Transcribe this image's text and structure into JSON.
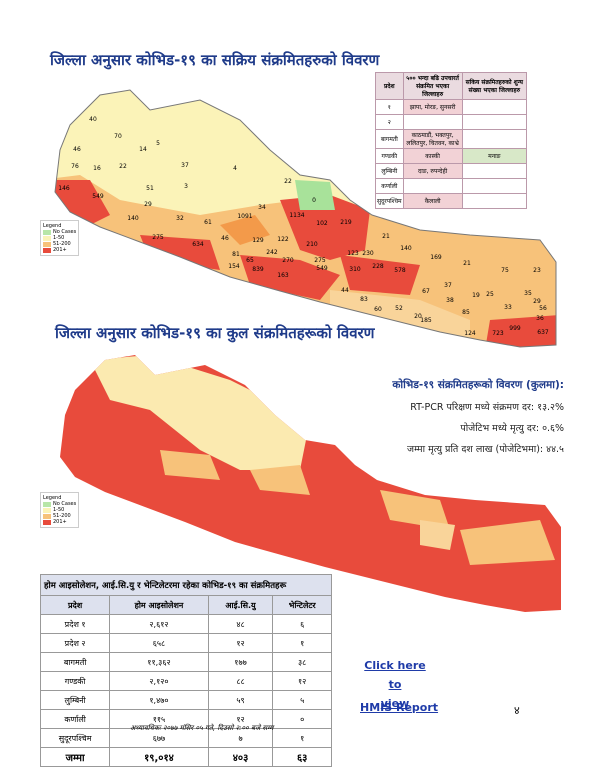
{
  "active_map": {
    "title": "जिल्ला अनुसार कोभिड-१९ का सक्रिय संक्रमितहरुको विवरण",
    "legend": {
      "title": "Legend",
      "items": [
        "No Cases",
        "1-50",
        "51-200",
        "201+"
      ]
    },
    "labels": [
      "40",
      "70",
      "46",
      "76",
      "16",
      "22",
      "146",
      "549",
      "14",
      "5",
      "37",
      "4",
      "51",
      "3",
      "29",
      "140",
      "32",
      "61",
      "1091",
      "34",
      "22",
      "0",
      "275",
      "634",
      "46",
      "129",
      "122",
      "1134",
      "102",
      "219",
      "242",
      "270",
      "210",
      "81",
      "65",
      "154",
      "839",
      "163",
      "275",
      "549",
      "123",
      "230",
      "21",
      "310",
      "228",
      "578",
      "140",
      "169",
      "21",
      "75",
      "23",
      "44",
      "83",
      "60",
      "52",
      "67",
      "20",
      "185",
      "37",
      "38",
      "85",
      "19",
      "25",
      "35",
      "29",
      "33",
      "56",
      "124",
      "723",
      "999",
      "637",
      "36"
    ]
  },
  "province_table": {
    "headers": [
      "प्रदेश",
      "५०० भन्दा बढि उपचारर्त संक्रमित भएका जिल्लाहरु",
      "सकिय संक्रमितहरुको शुन्य संख्या भएका जिल्लाहरु"
    ],
    "rows": [
      [
        "१",
        "झापा, मोरङ, सुनसरी",
        null
      ],
      [
        "२",
        null,
        null
      ],
      [
        "बागमती",
        "काठमाडौं, भक्तपुर, ललितपुर, चितवन, काभ्रे",
        null
      ],
      [
        "गण्डकी",
        "कास्की",
        "मनाङ"
      ],
      [
        "लुम्बिनी",
        "दाङ, रुपन्देही",
        null
      ],
      [
        "कर्णाली",
        null,
        null
      ],
      [
        "सुदूरपश्चिम",
        "कैलाली",
        null
      ]
    ]
  },
  "total_map": {
    "title": "जिल्ला अनुसार कोभिड-१९ का कुल संक्रमितहरूको विवरण",
    "legend": {
      "title": "Legend",
      "items": [
        "No Cases",
        "1-50",
        "51-200",
        "201+"
      ]
    }
  },
  "summary": {
    "title": "कोभिड-१९ संक्रमितहरूको विवरण (कुलमा):",
    "lines": [
      "RT-PCR परिक्षण मध्ये संक्रमण दर: १३.२%",
      "पोजेटिभ मध्ये मृत्यु दर: ०.६%",
      "जम्मा मृत्यु प्रति दश लाख (पोजेटिभमा): ४४.५"
    ]
  },
  "icu_table": {
    "title": "होम आइसोलेशन, आई.सि.यु र भेन्टिलेटरमा रहेका कोभिड-१९ का संक्रमितहरू",
    "headers": [
      "प्रदेश",
      "होम आइसोलेशन",
      "आई.सि.यु",
      "भेन्टिलेटर"
    ],
    "rows": [
      [
        "प्रदेश १",
        "२,६१२",
        "४८",
        "६"
      ],
      [
        "प्रदेश २",
        "६५८",
        "१२",
        "१"
      ],
      [
        "बागमती",
        "११,३६२",
        "१७७",
        "३८"
      ],
      [
        "गण्डकी",
        "२,१२०",
        "८८",
        "१२"
      ],
      [
        "लुम्बिनी",
        "१,४७०",
        "५९",
        "५"
      ],
      [
        "कर्णाली",
        "११५",
        "१२",
        "०"
      ],
      [
        "सुदूरपश्चिम",
        "६७७",
        "७",
        "१"
      ]
    ],
    "total": [
      "जम्मा",
      "१९,०१४",
      "४०३",
      "६३"
    ]
  },
  "footnote": "अध्यावधिकः २०७७ मंसिर ०५ गते, दिउसो २:०० बजे सम्म",
  "link": {
    "line1": "Click here to",
    "line2": "view",
    "report": "HMIS Report"
  },
  "page_number": "४"
}
